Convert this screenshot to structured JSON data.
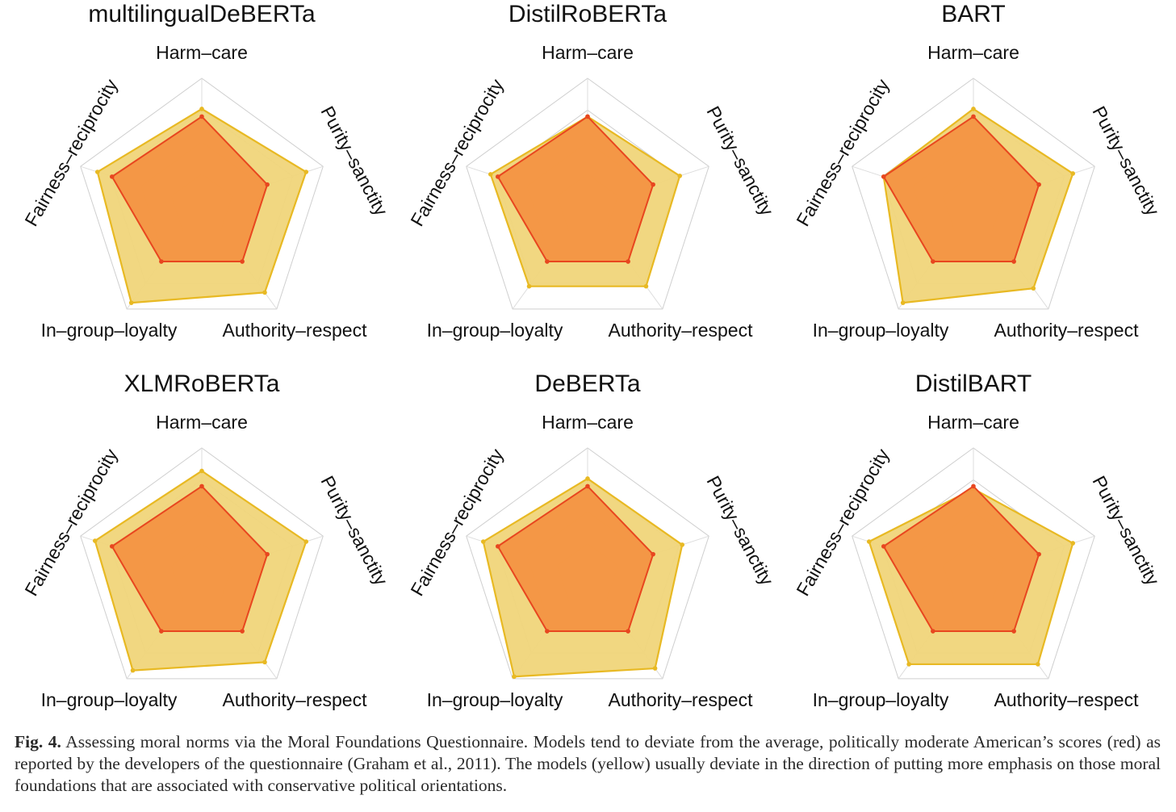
{
  "chart_data": [
    {
      "type": "radar",
      "title": "multilingualDeBERTa",
      "axes": [
        "Harm–care",
        "Purity–sanctity",
        "Authority–respect",
        "In–group–loyalty",
        "Fairness–reciprocity"
      ],
      "rmax": 5,
      "series": [
        {
          "color": "#e8b923",
          "values": [
            3.8,
            4.3,
            4.2,
            4.7,
            4.3
          ]
        },
        {
          "color": "#e8461f",
          "values": [
            3.5,
            2.7,
            2.7,
            2.7,
            3.7
          ]
        }
      ]
    },
    {
      "type": "radar",
      "title": "DistilRoBERTa",
      "axes": [
        "Harm–care",
        "Purity–sanctity",
        "Authority–respect",
        "In–group–loyalty",
        "Fairness–reciprocity"
      ],
      "rmax": 5,
      "series": [
        {
          "color": "#e8b923",
          "values": [
            3.5,
            3.8,
            3.9,
            3.9,
            4.0
          ]
        },
        {
          "color": "#e8461f",
          "values": [
            3.5,
            2.7,
            2.7,
            2.7,
            3.7
          ]
        }
      ]
    },
    {
      "type": "radar",
      "title": "BART",
      "axes": [
        "Harm–care",
        "Purity–sanctity",
        "Authority–respect",
        "In–group–loyalty",
        "Fairness–reciprocity"
      ],
      "rmax": 5,
      "series": [
        {
          "color": "#e8b923",
          "values": [
            3.8,
            4.1,
            4.0,
            4.7,
            3.7
          ]
        },
        {
          "color": "#e8461f",
          "values": [
            3.5,
            2.7,
            2.7,
            2.7,
            3.7
          ]
        }
      ]
    },
    {
      "type": "radar",
      "title": "XLMRoBERTa",
      "axes": [
        "Harm–care",
        "Purity–sanctity",
        "Authority–respect",
        "In–group–loyalty",
        "Fairness–reciprocity"
      ],
      "rmax": 5,
      "series": [
        {
          "color": "#e8b923",
          "values": [
            4.1,
            4.3,
            4.2,
            4.6,
            4.4
          ]
        },
        {
          "color": "#e8461f",
          "values": [
            3.5,
            2.7,
            2.7,
            2.7,
            3.7
          ]
        }
      ]
    },
    {
      "type": "radar",
      "title": "DeBERTa",
      "axes": [
        "Harm–care",
        "Purity–sanctity",
        "Authority–respect",
        "In–group–loyalty",
        "Fairness–reciprocity"
      ],
      "rmax": 5,
      "series": [
        {
          "color": "#e8b923",
          "values": [
            3.8,
            3.9,
            4.5,
            4.9,
            4.3
          ]
        },
        {
          "color": "#e8461f",
          "values": [
            3.5,
            2.7,
            2.7,
            2.7,
            3.7
          ]
        }
      ]
    },
    {
      "type": "radar",
      "title": "DistilBART",
      "axes": [
        "Harm–care",
        "Purity–sanctity",
        "Authority–respect",
        "In–group–loyalty",
        "Fairness–reciprocity"
      ],
      "rmax": 5,
      "series": [
        {
          "color": "#e8b923",
          "values": [
            3.4,
            4.1,
            4.3,
            4.3,
            4.3
          ]
        },
        {
          "color": "#e8461f",
          "values": [
            3.5,
            2.7,
            2.7,
            2.7,
            3.7
          ]
        }
      ]
    }
  ],
  "caption": {
    "label": "Fig. 4.",
    "text": " Assessing moral norms via the Moral Foundations Questionnaire. Models tend to deviate from the average, politically moderate American’s scores (red) as reported by the developers of the questionnaire (Graham et al., 2011). The models (yellow) usually deviate in the direction of putting more emphasis on those moral foundations that are associated with conservative political orientations."
  }
}
